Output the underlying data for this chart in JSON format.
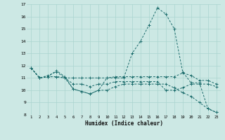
{
  "xlabel": "Humidex (Indice chaleur)",
  "bg_color": "#cce8e4",
  "grid_color": "#aad4cf",
  "line_color": "#1a6b6b",
  "x_values": [
    1,
    2,
    3,
    4,
    5,
    6,
    7,
    8,
    9,
    10,
    11,
    12,
    13,
    14,
    15,
    16,
    17,
    18,
    19,
    20,
    21,
    22,
    23
  ],
  "series": [
    [
      11.8,
      11.0,
      11.1,
      11.6,
      11.1,
      10.1,
      9.9,
      9.7,
      10.0,
      11.0,
      11.0,
      11.0,
      13.0,
      14.0,
      15.3,
      16.7,
      16.2,
      15.0,
      11.5,
      10.6,
      10.6,
      8.5,
      8.2
    ],
    [
      11.8,
      11.0,
      11.2,
      11.5,
      11.0,
      11.0,
      11.0,
      11.0,
      11.0,
      11.0,
      11.1,
      11.1,
      11.1,
      11.1,
      11.1,
      11.1,
      11.1,
      11.1,
      11.4,
      11.2,
      10.8,
      10.8,
      10.5
    ],
    [
      11.8,
      11.0,
      11.1,
      11.1,
      11.0,
      10.5,
      10.5,
      10.3,
      10.5,
      10.5,
      10.7,
      10.7,
      10.7,
      10.7,
      10.7,
      10.7,
      10.0,
      10.0,
      10.2,
      10.5,
      10.5,
      10.5,
      10.3
    ],
    [
      11.8,
      11.0,
      11.1,
      11.1,
      11.0,
      10.1,
      9.9,
      9.7,
      10.0,
      10.0,
      10.3,
      10.5,
      10.5,
      10.5,
      10.5,
      10.5,
      10.5,
      10.2,
      9.8,
      9.5,
      9.0,
      8.5,
      8.2
    ]
  ],
  "ylim": [
    8,
    17
  ],
  "xlim": [
    0.5,
    23.5
  ],
  "yticks": [
    8,
    9,
    10,
    11,
    12,
    13,
    14,
    15,
    16,
    17
  ],
  "xticks": [
    1,
    2,
    3,
    4,
    5,
    6,
    7,
    8,
    9,
    10,
    11,
    12,
    13,
    14,
    15,
    16,
    17,
    18,
    19,
    20,
    21,
    22,
    23
  ]
}
